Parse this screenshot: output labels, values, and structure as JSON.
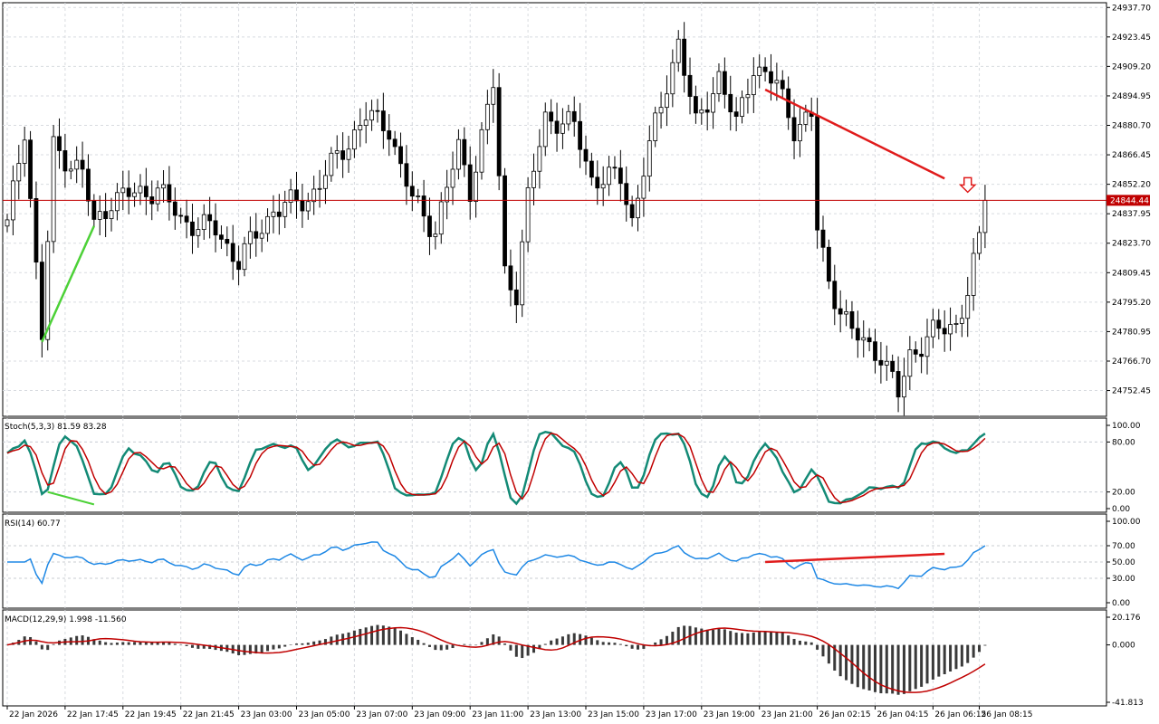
{
  "chart_data": [
    {
      "type": "candlestick",
      "panel": "price",
      "ylim": [
        24740.0,
        24940.0
      ],
      "y_ticks": [
        "24937.70",
        "24923.45",
        "24909.20",
        "24894.95",
        "24880.70",
        "24866.45",
        "24852.20",
        "24837.95",
        "24823.70",
        "24809.45",
        "24795.20",
        "24780.95",
        "24766.70",
        "24752.45"
      ],
      "current_price": "24844.44",
      "current_price_value": 24844.44,
      "current_price_color": "#c00000",
      "trendlines": [
        {
          "color": "#4cd137",
          "x": [
            6,
            15
          ],
          "y": [
            24776,
            24832
          ]
        },
        {
          "color": "#e01b1b",
          "x": [
            131,
            162
          ],
          "y": [
            24898,
            24855
          ]
        }
      ],
      "arrow": {
        "color": "#e01b1b",
        "direction": "down",
        "x": 166,
        "y": 24851
      }
    },
    {
      "type": "line",
      "panel": "stochastic",
      "title": "Stoch(5,3,3) 81.59 83.28",
      "ylim": [
        0,
        100
      ],
      "y_ticks": [
        "100.00",
        "80.00",
        "20.00",
        "0.00"
      ],
      "levels": [
        80,
        20
      ],
      "series_colors": [
        "#138a76",
        "#c00000"
      ],
      "trendline": {
        "color": "#4cd137",
        "x": [
          7,
          15
        ],
        "y": [
          20,
          5
        ]
      }
    },
    {
      "type": "line",
      "panel": "rsi",
      "title": "RSI(14) 60.77",
      "ylim": [
        0,
        100
      ],
      "y_ticks": [
        "100.00",
        "70.00",
        "50.00",
        "30.00",
        "0.00"
      ],
      "levels": [
        70,
        50,
        30
      ],
      "series_color": "#1e88e5",
      "trendline": {
        "color": "#e01b1b",
        "x": [
          131,
          162
        ],
        "y": [
          50,
          60
        ]
      }
    },
    {
      "type": "bar",
      "panel": "macd",
      "title": "MACD(12,29,9) 1.998 -11.560",
      "ylim": [
        -41.813,
        20.176
      ],
      "y_ticks": [
        "20.176",
        "0.000",
        "-41.813"
      ],
      "bar_color": "#3a3a3a",
      "signal_color": "#c00000"
    }
  ],
  "x_labels": [
    "22 Jan 2026",
    "22 Jan 17:45",
    "22 Jan 19:45",
    "22 Jan 21:45",
    "23 Jan 03:00",
    "23 Jan 05:00",
    "23 Jan 07:00",
    "23 Jan 09:00",
    "23 Jan 11:00",
    "23 Jan 13:00",
    "23 Jan 15:00",
    "23 Jan 17:00",
    "23 Jan 19:00",
    "23 Jan 21:00",
    "26 Jan 02:15",
    "26 Jan 04:15",
    "26 Jan 06:15",
    "26 Jan 08:15"
  ]
}
